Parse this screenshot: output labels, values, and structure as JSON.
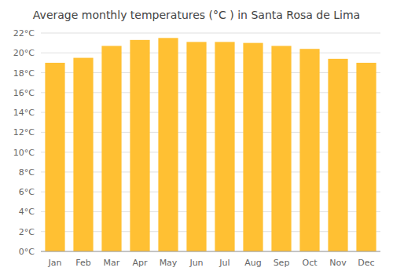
{
  "chart_data": {
    "type": "bar",
    "title": "Average monthly temperatures (°C ) in Santa Rosa de Lima",
    "categories": [
      "Jan",
      "Feb",
      "Mar",
      "Apr",
      "May",
      "Jun",
      "Jul",
      "Aug",
      "Sep",
      "Oct",
      "Nov",
      "Dec"
    ],
    "values": [
      19.0,
      19.5,
      20.7,
      21.3,
      21.5,
      21.1,
      21.1,
      21.0,
      20.7,
      20.4,
      19.4,
      19.0
    ],
    "color": "#FFC033",
    "ylim": [
      0,
      22
    ],
    "yticks": [
      {
        "value": 0,
        "label": "0°C"
      },
      {
        "value": 2,
        "label": "2°C"
      },
      {
        "value": 4,
        "label": "4°C"
      },
      {
        "value": 6,
        "label": "6°C"
      },
      {
        "value": 8,
        "label": "8°C"
      },
      {
        "value": 10,
        "label": "10°C"
      },
      {
        "value": 12,
        "label": "12°C"
      },
      {
        "value": 14,
        "label": "14°C"
      },
      {
        "value": 16,
        "label": "16°C"
      },
      {
        "value": 18,
        "label": "18°C"
      },
      {
        "value": 20,
        "label": "20°C"
      },
      {
        "value": 22,
        "label": "22°C"
      }
    ],
    "grid": true
  }
}
